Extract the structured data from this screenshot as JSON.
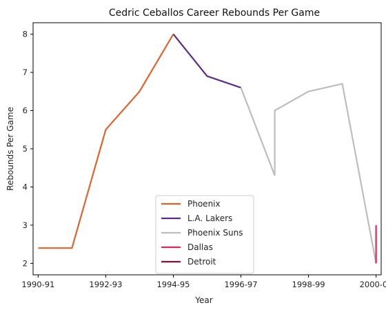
{
  "chart_data": {
    "type": "line",
    "title": "Cedric Ceballos Career Rebounds Per Game",
    "xlabel": "Year",
    "ylabel": "Rebounds Per Game",
    "xlim": [
      1990.35,
      2000.65
    ],
    "ylim": [
      1.7,
      8.3
    ],
    "x_ticks": [
      {
        "value": 1990.5,
        "label": "1990-91"
      },
      {
        "value": 1992.5,
        "label": "1992-93"
      },
      {
        "value": 1994.5,
        "label": "1994-95"
      },
      {
        "value": 1996.5,
        "label": "1996-97"
      },
      {
        "value": 1998.5,
        "label": "1998-99"
      },
      {
        "value": 2000.5,
        "label": "2000-01"
      }
    ],
    "y_ticks": [
      2,
      3,
      4,
      5,
      6,
      7,
      8
    ],
    "grid": false,
    "legend_position": "lower-center",
    "series": [
      {
        "name": "Phoenix",
        "color": "#e0622a",
        "x": [
          1990.5,
          1991.5,
          1992.5,
          1993.5,
          1994.5
        ],
        "y": [
          2.4,
          2.4,
          5.5,
          6.5,
          8.0
        ]
      },
      {
        "name": "L.A. Lakers",
        "color": "#5b2a86",
        "x": [
          1994.5,
          1995.5,
          1996.5
        ],
        "y": [
          8.0,
          6.9,
          6.6
        ]
      },
      {
        "name": "Phoenix Suns",
        "color": "#bdbdbd",
        "x": [
          1996.5,
          1997.5,
          1997.5,
          1998.5,
          1999.5,
          2000.5
        ],
        "y": [
          6.6,
          4.3,
          6.0,
          6.5,
          6.7,
          2.0
        ]
      },
      {
        "name": "Dallas",
        "color": "#e0245e",
        "x": [
          2000.5,
          2000.5
        ],
        "y": [
          2.0,
          3.0
        ]
      },
      {
        "name": "Detroit",
        "color": "#8b0a3a",
        "x": [],
        "y": []
      }
    ]
  }
}
